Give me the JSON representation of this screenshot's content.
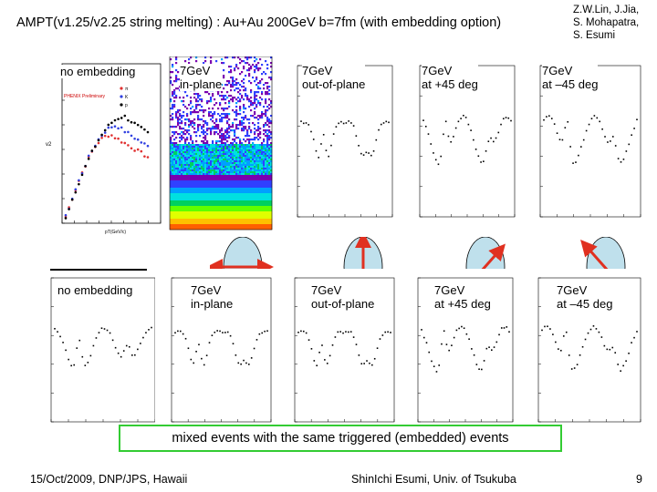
{
  "slide": {
    "title": "AMPT(v1.25/v2.25 string melting) : Au+Au 200GeV b=7fm (with embedding option)",
    "authors": [
      "Z.W.Lin, J.Jia,",
      "S. Mohapatra,",
      "S. Esumi"
    ],
    "footer_left": "15/Oct/2009, DNP/JPS, Hawaii",
    "footer_center": "ShinIchi Esumi, Univ. of Tsukuba",
    "page_number": "9",
    "banner": "mixed events with the same triggered (embedded) events"
  },
  "top_row": {
    "panel1": {
      "label": "no embedding",
      "watermark": "PHENIX Preliminary",
      "legend": [
        "π",
        "K",
        "p"
      ],
      "ylabel": "v2",
      "xlabel": "pT(GeV/c)"
    },
    "panel2": {
      "label_line1": "7GeV",
      "label_line2": "in-plane"
    },
    "panel3": {
      "label_line1": "7GeV",
      "label_line2": "out-of-plane"
    },
    "panel4": {
      "label_line1": "7GeV",
      "label_line2": "at +45 deg"
    },
    "panel5": {
      "label_line1": "7GeV",
      "label_line2": "at –45 deg"
    }
  },
  "bottom_row": {
    "panel1": {
      "label": "no embedding"
    },
    "panel2": {
      "label_line1": "7GeV",
      "label_line2": "in-plane"
    },
    "panel3": {
      "label_line1": "7GeV",
      "label_line2": "out-of-plane"
    },
    "panel4": {
      "label_line1": "7GeV",
      "label_line2": "at +45 deg"
    },
    "panel5": {
      "label_line1": "7GeV",
      "label_line2": "at –45 deg"
    }
  },
  "colors": {
    "ellipse_fill": "#bfe0ec",
    "arrow": "#e03020",
    "banner_border": "#33cc33",
    "series_pi": "#e03030",
    "series_k": "#3040e0",
    "series_p": "#000000"
  }
}
